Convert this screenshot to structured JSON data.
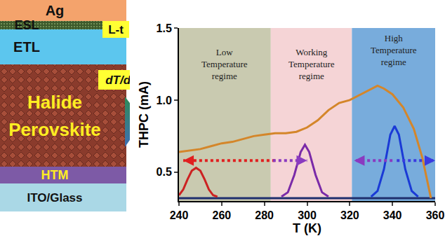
{
  "diagram": {
    "layers": [
      {
        "label": [
          "Ag"
        ],
        "color": "#f4a36c",
        "text_color": "#111111"
      },
      {
        "label": [
          "ESL"
        ],
        "color": "#3d5a2c",
        "text_color": "#111111"
      },
      {
        "label": [
          "ETL"
        ],
        "color": "#5cc6ee",
        "text_color": "#111111"
      },
      {
        "label": [
          "Halide",
          "Perovskite"
        ],
        "color": "#8a3b2c",
        "text_color": "#ffee22"
      },
      {
        "label": [
          "HTM"
        ],
        "color": "#7d5aa6",
        "text_color": "#ffee22"
      },
      {
        "label": [
          "ITO/Glass"
        ],
        "color": "#aad8e6",
        "text_color": "#111111"
      }
    ],
    "tags": [
      "L-t",
      "dT/dt"
    ]
  },
  "chart_data": {
    "type": "line",
    "x_label": "T (K)",
    "y_label": "THPC (mA)",
    "xlim": [
      240,
      360
    ],
    "xticks": [
      240,
      260,
      280,
      300,
      320,
      340,
      360
    ],
    "ylim": [
      0.3,
      1.5
    ],
    "yticks": [
      0.5,
      {
        "value": 1,
        "label": "1.0"
      },
      1.5
    ],
    "grid": false,
    "regions": [
      {
        "label": [
          "Low",
          "Temperature",
          "regime"
        ],
        "from": 240,
        "to": 283,
        "color": "#c9cab0"
      },
      {
        "label": [
          "Working",
          "Temperature",
          "regime"
        ],
        "from": 283,
        "to": 321,
        "color": "#f5d4d6"
      },
      {
        "label": [
          "High",
          "Temperature",
          "regime"
        ],
        "from": 321,
        "to": 360,
        "color": "#78acdc"
      }
    ],
    "series": [
      {
        "color": "#1f2f6e",
        "x": [
          240,
          360
        ],
        "values": [
          0.32,
          0.32
        ]
      },
      {
        "color": "#d4862a",
        "x": [
          240,
          245,
          250,
          255,
          260,
          265,
          270,
          275,
          280,
          285,
          290,
          295,
          300,
          305,
          310,
          315,
          320,
          325,
          330,
          333,
          336,
          340,
          345,
          350,
          354,
          357,
          358
        ],
        "values": [
          0.64,
          0.65,
          0.66,
          0.68,
          0.7,
          0.71,
          0.73,
          0.75,
          0.76,
          0.77,
          0.77,
          0.78,
          0.81,
          0.86,
          0.93,
          0.98,
          1.0,
          1.04,
          1.08,
          1.1,
          1.08,
          1.04,
          0.95,
          0.8,
          0.6,
          0.4,
          0.32
        ]
      },
      {
        "color": "#cc2222",
        "x": [
          240,
          242,
          244,
          246,
          248,
          250,
          252,
          254,
          256,
          258
        ],
        "values": [
          0.34,
          0.38,
          0.45,
          0.51,
          0.53,
          0.51,
          0.45,
          0.38,
          0.34,
          0.33
        ]
      },
      {
        "color": "#7a2aa8",
        "x": [
          288,
          291,
          294,
          297,
          299,
          301,
          304,
          307,
          310
        ],
        "values": [
          0.33,
          0.36,
          0.48,
          0.64,
          0.69,
          0.64,
          0.48,
          0.36,
          0.33
        ]
      },
      {
        "color": "#1a3ad6",
        "x": [
          330,
          333,
          336,
          339,
          341,
          343,
          346,
          349,
          352
        ],
        "values": [
          0.33,
          0.37,
          0.52,
          0.76,
          0.82,
          0.76,
          0.52,
          0.37,
          0.33
        ]
      }
    ],
    "arrows": [
      {
        "from": 285,
        "to": 242,
        "y": 0.58,
        "color": "#e02020"
      },
      {
        "from": 284,
        "to": 300,
        "y": 0.58,
        "color": "#8a3ac0"
      },
      {
        "from": 340,
        "to": 322,
        "y": 0.58,
        "color": "#8a3ac0"
      },
      {
        "from": 342,
        "to": 360,
        "y": 0.58,
        "color": "#3a3ae0"
      }
    ]
  }
}
